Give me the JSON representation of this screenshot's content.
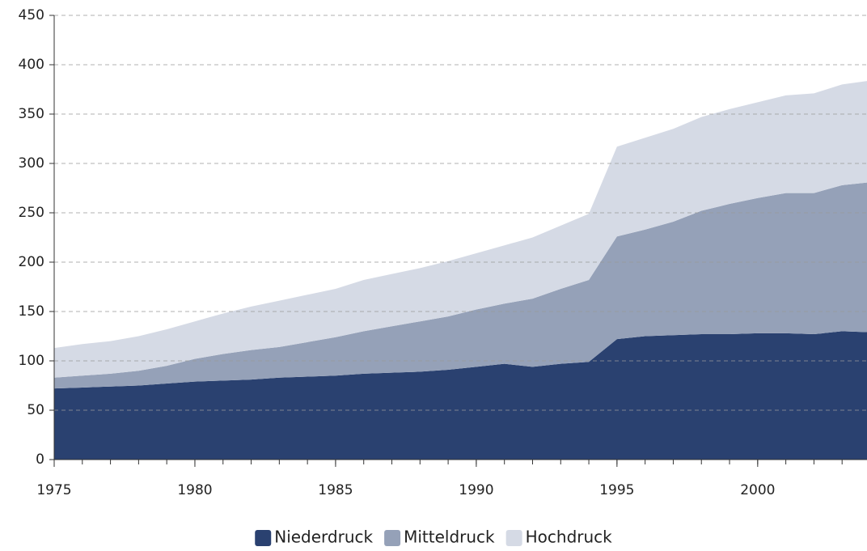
{
  "chart_data": {
    "type": "stacked-area",
    "x": [
      1975,
      1976,
      1977,
      1978,
      1979,
      1980,
      1981,
      1982,
      1983,
      1984,
      1985,
      1986,
      1987,
      1988,
      1989,
      1990,
      1991,
      1992,
      1993,
      1994,
      1995,
      1996,
      1997,
      1998,
      1999,
      2000,
      2001,
      2002,
      2003,
      2004
    ],
    "series": [
      {
        "name": "Niederdruck",
        "color": "#2a4170",
        "values": [
          72,
          73,
          74,
          75,
          77,
          79,
          80,
          81,
          83,
          84,
          85,
          87,
          88,
          89,
          91,
          94,
          97,
          94,
          97,
          99,
          122,
          125,
          126,
          127,
          127,
          128,
          128,
          127,
          130,
          129
        ]
      },
      {
        "name": "Mitteldruck",
        "color": "#95a1b8",
        "values": [
          11,
          12,
          13,
          15,
          18,
          23,
          27,
          30,
          31,
          35,
          39,
          43,
          47,
          51,
          54,
          58,
          61,
          69,
          76,
          83,
          104,
          108,
          115,
          125,
          132,
          137,
          142,
          143,
          148,
          152
        ]
      },
      {
        "name": "Hochdruck",
        "color": "#d5dae5",
        "values": [
          30,
          32,
          33,
          35,
          37,
          38,
          41,
          44,
          47,
          48,
          49,
          52,
          53,
          54,
          56,
          57,
          59,
          62,
          64,
          67,
          91,
          93,
          94,
          95,
          96,
          97,
          99,
          101,
          102,
          103
        ]
      }
    ],
    "xlim": [
      1975,
      2004
    ],
    "xticks": [
      1975,
      1980,
      1985,
      1990,
      1995,
      2000
    ],
    "ylim": [
      0,
      450
    ],
    "yticks": [
      0,
      50,
      100,
      150,
      200,
      250,
      300,
      350,
      400,
      450
    ],
    "grid": true,
    "legend": "bottom"
  }
}
